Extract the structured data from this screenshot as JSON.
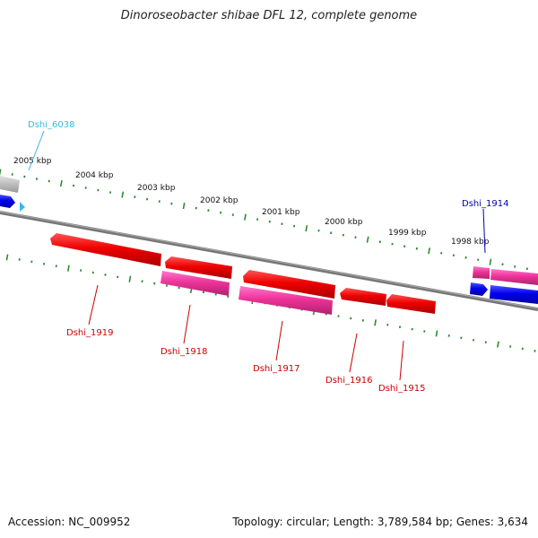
{
  "title": "Dinoroseobacter shibae DFL 12, complete genome",
  "footer": {
    "accession": "Accession: NC_009952",
    "topology": "Topology: circular; Length: 3,789,584 bp; Genes: 3,634"
  },
  "scale": {
    "ticks": [
      "2005 kbp",
      "2004 kbp",
      "2003 kbp",
      "2002 kbp",
      "2001 kbp",
      "2000 kbp",
      "1999 kbp",
      "1998 kbp"
    ]
  },
  "genes": [
    {
      "name": "Dshi_6038",
      "color": "#33bbdd"
    },
    {
      "name": "Dshi_1914",
      "color": "#0000aa"
    },
    {
      "name": "Dshi_1915",
      "color": "#cc0000"
    },
    {
      "name": "Dshi_1916",
      "color": "#cc0000"
    },
    {
      "name": "Dshi_1917",
      "color": "#cc0000"
    },
    {
      "name": "Dshi_1918",
      "color": "#cc0000"
    },
    {
      "name": "Dshi_1919",
      "color": "#cc0000"
    }
  ],
  "colors": {
    "backbone": "#808080",
    "tick": "#2e8b2e",
    "gene_red": "#ee0000",
    "gene_pink": "#ee3399",
    "gene_blue": "#0000ee",
    "gene_grey": "#bbbbbb"
  }
}
